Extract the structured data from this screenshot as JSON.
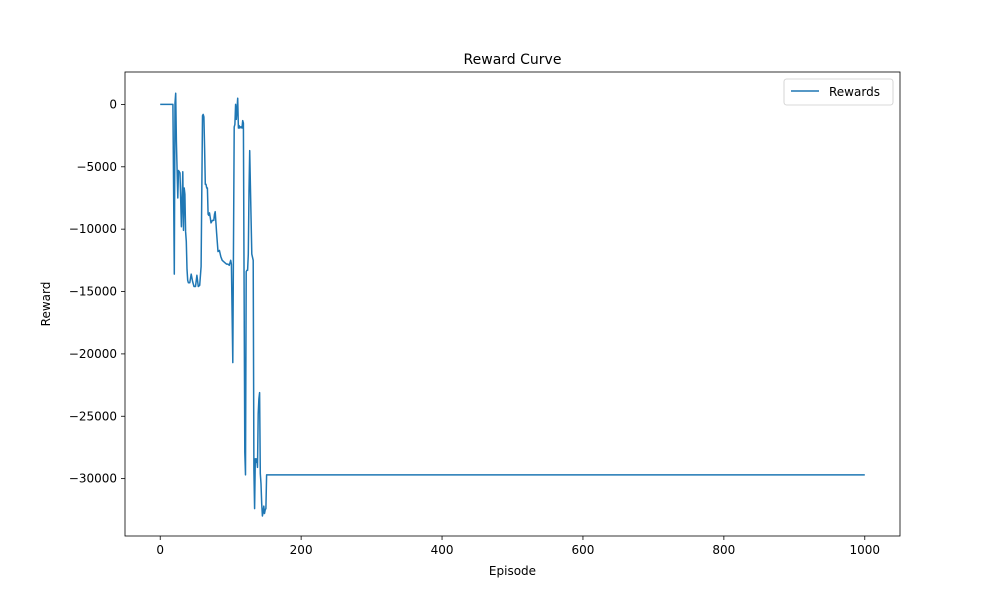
{
  "chart_data": {
    "type": "line",
    "title": "Reward Curve",
    "xlabel": "Episode",
    "ylabel": "Reward",
    "xlim": [
      -50,
      1050
    ],
    "ylim": [
      -34600,
      2600
    ],
    "xticks": [
      0,
      200,
      400,
      600,
      800,
      1000
    ],
    "xtick_labels": [
      "0",
      "200",
      "400",
      "600",
      "800",
      "1000"
    ],
    "yticks": [
      0,
      -5000,
      -10000,
      -15000,
      -20000,
      -25000,
      -30000
    ],
    "ytick_labels": [
      "0",
      "−5000",
      "−10000",
      "−15000",
      "−20000",
      "−25000",
      "−30000"
    ],
    "legend_position": "upper right",
    "grid": false,
    "series": [
      {
        "name": "Rewards",
        "color": "#1f77b4",
        "x": [
          0,
          18,
          20,
          21,
          22,
          23,
          25,
          26,
          27,
          28,
          30,
          32,
          33,
          34,
          35,
          36,
          37,
          38,
          39,
          40,
          42,
          44,
          46,
          48,
          50,
          52,
          54,
          56,
          58,
          60,
          61,
          62,
          63,
          64,
          65,
          66,
          67,
          68,
          69,
          70,
          71,
          72,
          73,
          74,
          75,
          76,
          77,
          78,
          80,
          82,
          84,
          86,
          88,
          90,
          92,
          94,
          96,
          98,
          100,
          101,
          103,
          105,
          106,
          107,
          108,
          109,
          110,
          111,
          112,
          113,
          114,
          115,
          116,
          117,
          118,
          120,
          121,
          122,
          123,
          124,
          125,
          126,
          127,
          128,
          130,
          132,
          133,
          134,
          135,
          136,
          137,
          138,
          139,
          140,
          141,
          142,
          143,
          144,
          145,
          146,
          147,
          148,
          149,
          150,
          151,
          152,
          153,
          154,
          155,
          156,
          157,
          158,
          159,
          160,
          161,
          162,
          163,
          165,
          168,
          170,
          1000
        ],
        "y": [
          0,
          0,
          -13600,
          100,
          900,
          -3000,
          -7500,
          -5300,
          -5400,
          -5500,
          -9800,
          -5400,
          -10100,
          -6700,
          -7200,
          -10200,
          -11000,
          -13200,
          -14100,
          -14300,
          -14300,
          -13600,
          -14200,
          -14600,
          -14600,
          -13700,
          -14600,
          -14500,
          -13000,
          -900,
          -800,
          -1000,
          -3500,
          -6400,
          -6400,
          -6700,
          -6700,
          -8800,
          -8900,
          -8700,
          -9100,
          -9500,
          -9400,
          -9300,
          -9300,
          -9300,
          -8800,
          -8600,
          -10300,
          -11800,
          -11700,
          -12200,
          -12500,
          -12600,
          -12700,
          -12800,
          -12800,
          -12900,
          -12500,
          -12800,
          -20700,
          -1800,
          -1600,
          0,
          -1200,
          -400,
          500,
          -1900,
          -1700,
          -1900,
          -1800,
          -1800,
          -1900,
          -1300,
          -1500,
          -27900,
          -29700,
          -13400,
          -13300,
          -13300,
          -12000,
          -7000,
          -3700,
          -6500,
          -12000,
          -12500,
          -29300,
          -32400,
          -28400,
          -28700,
          -28400,
          -29100,
          -24800,
          -23600,
          -23100,
          -29600,
          -30400,
          -32000,
          -33000,
          -32700,
          -32200,
          -32800,
          -32500,
          -32400,
          -29700,
          -29700,
          -29700,
          -29700,
          -29700,
          -29700,
          -29700,
          -29700,
          -29700,
          -29700,
          -29700,
          -29700,
          -29700,
          -29700,
          -29700,
          -29700,
          -29700
        ]
      }
    ]
  }
}
